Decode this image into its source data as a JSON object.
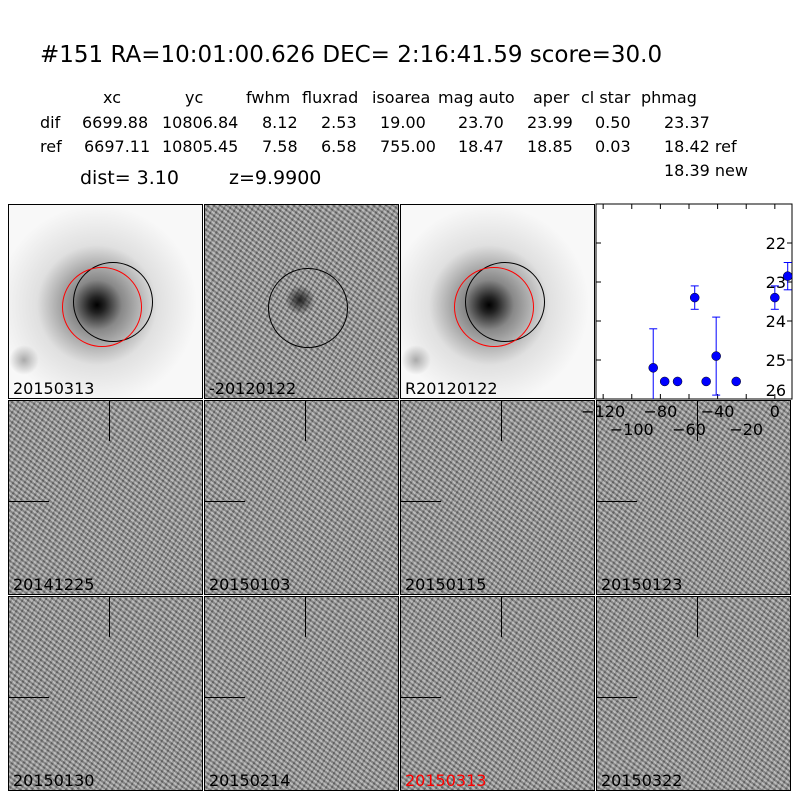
{
  "title": "#151   RA=10:01:00.626 DEC= 2:16:41.59      score=30.0",
  "table": {
    "headers": [
      "xc",
      "yc",
      "fwhm",
      "fluxrad",
      "isoarea",
      "mag auto",
      "aper",
      "cl star",
      "phmag"
    ],
    "rows": [
      {
        "label": "dif",
        "values": [
          "6699.88",
          "10806.84",
          "8.12",
          "2.53",
          "19.00",
          "23.70",
          "23.99",
          "0.50",
          "23.37"
        ]
      },
      {
        "label": "ref",
        "values": [
          "6697.11",
          "10805.45",
          "7.58",
          "6.58",
          "755.00",
          "18.47",
          "18.85",
          "0.03",
          "18.42 ref"
        ]
      }
    ],
    "extra": "18.39 new",
    "dist": "dist=  3.10",
    "z": "z=9.9900"
  },
  "stamps": [
    {
      "label": "20150313",
      "color": "#000000"
    },
    {
      "label": "-20120122",
      "color": "#000000"
    },
    {
      "label": "R20120122",
      "color": "#000000"
    },
    {
      "label": "20141225",
      "color": "#000000"
    },
    {
      "label": "20150103",
      "color": "#000000"
    },
    {
      "label": "20150115",
      "color": "#000000"
    },
    {
      "label": "20150123",
      "color": "#000000"
    },
    {
      "label": "20150130",
      "color": "#000000"
    },
    {
      "label": "20150214",
      "color": "#000000"
    },
    {
      "label": "20150313",
      "color": "#ff0000"
    },
    {
      "label": "20150322",
      "color": "#000000"
    }
  ],
  "chart_data": {
    "type": "scatter",
    "title": "",
    "xlabel": "",
    "ylabel": "",
    "xlim": [
      -125,
      12
    ],
    "ylim": [
      26,
      21
    ],
    "xticks": [
      "−120",
      "−100",
      "−80",
      "−60",
      "−40",
      "−20",
      "0"
    ],
    "xtick_values": [
      -120,
      -100,
      -80,
      -60,
      -40,
      -20,
      0
    ],
    "yticks": [
      "22",
      "23",
      "24",
      "25",
      "26"
    ],
    "ytick_values": [
      22,
      23,
      24,
      25,
      26
    ],
    "color": "#0000ff",
    "points": [
      {
        "x": -85,
        "y": 25.2,
        "err": 1.0
      },
      {
        "x": -77,
        "y": 25.55,
        "err": 0.05
      },
      {
        "x": -68,
        "y": 25.55,
        "err": 0.05
      },
      {
        "x": -56,
        "y": 23.4,
        "err": 0.3
      },
      {
        "x": -48,
        "y": 25.55,
        "err": 0.05
      },
      {
        "x": -41,
        "y": 24.9,
        "err": 1.0
      },
      {
        "x": -27,
        "y": 25.55,
        "err": 0.05
      },
      {
        "x": 0,
        "y": 23.4,
        "err": 0.3
      },
      {
        "x": 9,
        "y": 22.85,
        "err": 0.35
      }
    ]
  }
}
